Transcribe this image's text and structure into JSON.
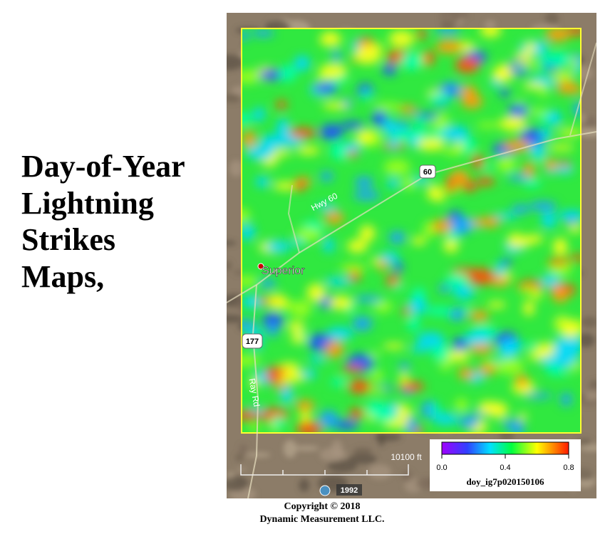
{
  "title_lines": [
    "Day-of-Year",
    "Lightning",
    "Strikes",
    "Maps,"
  ],
  "map": {
    "labels": {
      "highway_name": "Hwy 60",
      "highway_shield": "60",
      "town": "Superior",
      "route_shield": "177",
      "road": "Ray Rd",
      "scale": "10100 ft",
      "imagery_year": "1992"
    }
  },
  "colorbar": {
    "clim": [
      0,
      0.8
    ],
    "ticks": [
      {
        "value": 0,
        "label": "0.0"
      },
      0.4,
      0.8
    ],
    "label": "doy_ig7p020150106"
  },
  "footer": [
    "Copyright  © 2018",
    "Dynamic Measurement LLC."
  ]
}
